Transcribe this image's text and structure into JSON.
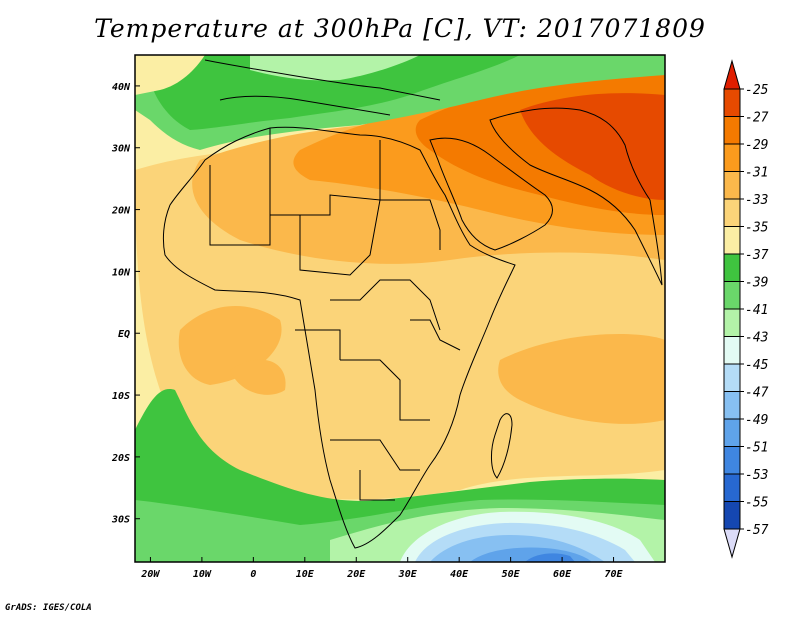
{
  "title": "Temperature at 300hPa [C], VT: 2017071809",
  "credit": "GrADS: IGES/COLA",
  "map": {
    "lon_range": [
      -23,
      80
    ],
    "lat_range": [
      -37,
      45
    ],
    "lon_ticks": [
      {
        "value": -20,
        "label": "20W"
      },
      {
        "value": -10,
        "label": "10W"
      },
      {
        "value": 0,
        "label": "0"
      },
      {
        "value": 10,
        "label": "10E"
      },
      {
        "value": 20,
        "label": "20E"
      },
      {
        "value": 30,
        "label": "30E"
      },
      {
        "value": 40,
        "label": "40E"
      },
      {
        "value": 50,
        "label": "50E"
      },
      {
        "value": 60,
        "label": "60E"
      },
      {
        "value": 70,
        "label": "70E"
      }
    ],
    "lat_ticks": [
      {
        "value": 40,
        "label": "40N"
      },
      {
        "value": 30,
        "label": "30N"
      },
      {
        "value": 20,
        "label": "20N"
      },
      {
        "value": 10,
        "label": "10N"
      },
      {
        "value": 0,
        "label": "EQ"
      },
      {
        "value": -10,
        "label": "10S"
      },
      {
        "value": -20,
        "label": "20S"
      },
      {
        "value": -30,
        "label": "30S"
      }
    ]
  },
  "colorbar": {
    "levels": [
      {
        "label": "-25",
        "color": "#e64a00"
      },
      {
        "label": "-27",
        "color": "#f47a00"
      },
      {
        "label": "-29",
        "color": "#fb9b1d"
      },
      {
        "label": "-31",
        "color": "#fbb84b"
      },
      {
        "label": "-33",
        "color": "#fbd479"
      },
      {
        "label": "-35",
        "color": "#fbeea4"
      },
      {
        "label": "-37",
        "color": "#3fc43f"
      },
      {
        "label": "-39",
        "color": "#6ad76a"
      },
      {
        "label": "-41",
        "color": "#b3f3a8"
      },
      {
        "label": "-43",
        "color": "#e3fbf4"
      },
      {
        "label": "-45",
        "color": "#b4dcf7"
      },
      {
        "label": "-47",
        "color": "#87c0f2"
      },
      {
        "label": "-49",
        "color": "#5fa3ea"
      },
      {
        "label": "-51",
        "color": "#3f86e1"
      },
      {
        "label": "-53",
        "color": "#2768d1"
      },
      {
        "label": "-55",
        "color": "#1547b1"
      },
      {
        "label": "-57",
        "color": "#0b1e7e"
      }
    ],
    "top_color": "#e01e00",
    "bottom_color": "#dcdcf8"
  }
}
